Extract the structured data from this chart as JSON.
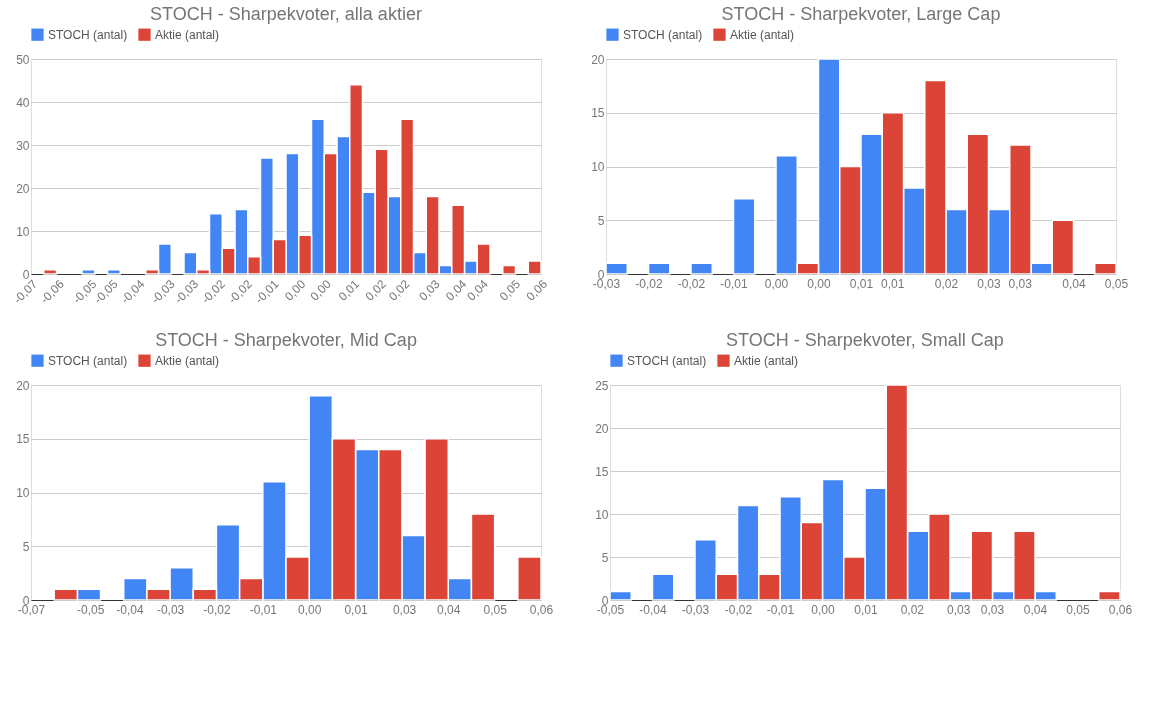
{
  "chart_data": [
    {
      "type": "histogram",
      "title": "STOCH - Sharpekvoter, alla aktier",
      "legend": "top",
      "grid": "y",
      "bins": [
        -0.07,
        -0.0635,
        -0.057,
        -0.0505,
        -0.044,
        -0.0375,
        -0.031,
        -0.0245,
        -0.018,
        -0.0115,
        -0.005,
        0.0015,
        0.008,
        0.0145,
        0.021,
        0.0275,
        0.034,
        0.0405,
        0.047,
        0.0535,
        0.06
      ],
      "xlim": [
        -0.07,
        0.06
      ],
      "xticks": [
        {
          "value": -0.07,
          "label": "-0,07"
        },
        {
          "value": -0.06316,
          "label": "-0,06"
        },
        {
          "value": -0.0549,
          "label": "-0,05"
        },
        {
          "value": -0.04947,
          "label": "-0,05"
        },
        {
          "value": -0.04263,
          "label": "-0,04"
        },
        {
          "value": -0.0349,
          "label": "-0,03"
        },
        {
          "value": -0.02895,
          "label": "-0,03"
        },
        {
          "value": -0.02211,
          "label": "-0,02"
        },
        {
          "value": -0.01526,
          "label": "-0,02"
        },
        {
          "value": -0.00842,
          "label": "-0,01"
        },
        {
          "value": -0.00158,
          "label": "0,00"
        },
        {
          "value": 0.0049,
          "label": "0,00"
        },
        {
          "value": 0.01211,
          "label": "0,01"
        },
        {
          "value": 0.01895,
          "label": "0,02"
        },
        {
          "value": 0.0249,
          "label": "0,02"
        },
        {
          "value": 0.03263,
          "label": "0,03"
        },
        {
          "value": 0.03947,
          "label": "0,04"
        },
        {
          "value": 0.0449,
          "label": "0,04"
        },
        {
          "value": 0.05316,
          "label": "0,05"
        },
        {
          "value": 0.06,
          "label": "0,06"
        }
      ],
      "ylim": [
        0,
        50
      ],
      "yticks": [
        0,
        10,
        20,
        30,
        40,
        50
      ],
      "series": [
        {
          "name": "STOCH (antal)",
          "color": "#4285f4",
          "values": [
            null,
            null,
            1,
            1,
            null,
            7,
            5,
            14,
            15,
            27,
            28,
            36,
            32,
            19,
            18,
            5,
            2,
            3,
            null,
            null
          ]
        },
        {
          "name": "Aktie (antal)",
          "color": "#db4437",
          "values": [
            1,
            null,
            null,
            null,
            1,
            null,
            1,
            6,
            4,
            8,
            9,
            28,
            44,
            29,
            36,
            18,
            16,
            7,
            2,
            3
          ]
        }
      ]
    },
    {
      "type": "histogram",
      "title": "STOCH - Sharpekvoter, Large Cap",
      "legend": "top",
      "grid": "y",
      "bins": [
        -0.03,
        -0.02333,
        -0.01667,
        -0.01,
        -0.00333,
        0.00333,
        0.01,
        0.01667,
        0.02333,
        0.03,
        0.03667,
        0.04333,
        0.05
      ],
      "xlim": [
        -0.03,
        0.05
      ],
      "xticks": [
        {
          "value": -0.03,
          "label": "-0,03"
        },
        {
          "value": -0.02333,
          "label": "-0,02"
        },
        {
          "value": -0.01667,
          "label": "-0,02"
        },
        {
          "value": -0.01,
          "label": "-0,01"
        },
        {
          "value": -0.00333,
          "label": "0,00"
        },
        {
          "value": 0.00333,
          "label": "0,00"
        },
        {
          "value": 0.01,
          "label": "0,01"
        },
        {
          "value": 0.0149,
          "label": "0,01"
        },
        {
          "value": 0.02333,
          "label": "0,02"
        },
        {
          "value": 0.03,
          "label": "0,03"
        },
        {
          "value": 0.0349,
          "label": "0,03"
        },
        {
          "value": 0.04333,
          "label": "0,04"
        },
        {
          "value": 0.05,
          "label": "0,05"
        }
      ],
      "ylim": [
        0,
        20
      ],
      "yticks": [
        0,
        5,
        10,
        15,
        20
      ],
      "series": [
        {
          "name": "STOCH (antal)",
          "color": "#4285f4",
          "values": [
            1,
            1,
            1,
            7,
            11,
            20,
            13,
            8,
            6,
            6,
            1,
            null
          ]
        },
        {
          "name": "Aktie (antal)",
          "color": "#db4437",
          "values": [
            null,
            null,
            null,
            null,
            1,
            10,
            15,
            18,
            13,
            12,
            5,
            1
          ]
        }
      ]
    },
    {
      "type": "histogram",
      "title": "STOCH - Sharpekvoter, Mid Cap",
      "legend": "top",
      "grid": "y",
      "bins": [
        -0.07,
        -0.05818,
        -0.04636,
        -0.03455,
        -0.02273,
        -0.01091,
        0.00091,
        0.01273,
        0.02455,
        0.03636,
        0.04818,
        0.06
      ],
      "xlim": [
        -0.07,
        0.06
      ],
      "xticks": [
        {
          "value": -0.07,
          "label": "-0,07"
        },
        {
          "value": -0.0549,
          "label": "-0,05"
        },
        {
          "value": -0.0449,
          "label": "-0,04"
        },
        {
          "value": -0.03455,
          "label": "-0,03"
        },
        {
          "value": -0.02273,
          "label": "-0,02"
        },
        {
          "value": -0.01091,
          "label": "-0,01"
        },
        {
          "value": 0.00091,
          "label": "0,00"
        },
        {
          "value": 0.01273,
          "label": "0,01"
        },
        {
          "value": 0.0251,
          "label": "0,03"
        },
        {
          "value": 0.03636,
          "label": "0,04"
        },
        {
          "value": 0.04818,
          "label": "0,05"
        },
        {
          "value": 0.06,
          "label": "0,06"
        }
      ],
      "ylim": [
        0,
        20
      ],
      "yticks": [
        0,
        5,
        10,
        15,
        20
      ],
      "series": [
        {
          "name": "STOCH (antal)",
          "color": "#4285f4",
          "values": [
            null,
            1,
            2,
            3,
            7,
            11,
            19,
            14,
            6,
            2,
            null
          ]
        },
        {
          "name": "Aktie (antal)",
          "color": "#db4437",
          "values": [
            1,
            null,
            1,
            1,
            2,
            4,
            15,
            14,
            15,
            8,
            4
          ]
        }
      ]
    },
    {
      "type": "histogram",
      "title": "STOCH - Sharpekvoter, Small Cap",
      "legend": "top",
      "grid": "y",
      "bins": [
        -0.05,
        -0.04083,
        -0.03167,
        -0.0225,
        -0.01333,
        -0.00417,
        0.005,
        0.01417,
        0.02333,
        0.0325,
        0.04167,
        0.05083,
        0.06
      ],
      "xlim": [
        -0.05,
        0.06
      ],
      "xticks": [
        {
          "value": -0.05,
          "label": "-0,05"
        },
        {
          "value": -0.04083,
          "label": "-0,04"
        },
        {
          "value": -0.03167,
          "label": "-0,03"
        },
        {
          "value": -0.0224,
          "label": "-0,02"
        },
        {
          "value": -0.01333,
          "label": "-0,01"
        },
        {
          "value": -0.00417,
          "label": "0,00"
        },
        {
          "value": 0.0051,
          "label": "0,01"
        },
        {
          "value": 0.0151,
          "label": "0,02"
        },
        {
          "value": 0.0251,
          "label": "0,03"
        },
        {
          "value": 0.0324,
          "label": "0,03"
        },
        {
          "value": 0.04167,
          "label": "0,04"
        },
        {
          "value": 0.05083,
          "label": "0,05"
        },
        {
          "value": 0.06,
          "label": "0,06"
        }
      ],
      "ylim": [
        0,
        25
      ],
      "yticks": [
        0,
        5,
        10,
        15,
        20,
        25
      ],
      "series": [
        {
          "name": "STOCH (antal)",
          "color": "#4285f4",
          "values": [
            1,
            3,
            7,
            11,
            12,
            14,
            13,
            8,
            1,
            1,
            1,
            null
          ]
        },
        {
          "name": "Aktie (antal)",
          "color": "#db4437",
          "values": [
            null,
            null,
            3,
            3,
            9,
            5,
            25,
            10,
            8,
            8,
            null,
            1
          ]
        }
      ]
    }
  ]
}
